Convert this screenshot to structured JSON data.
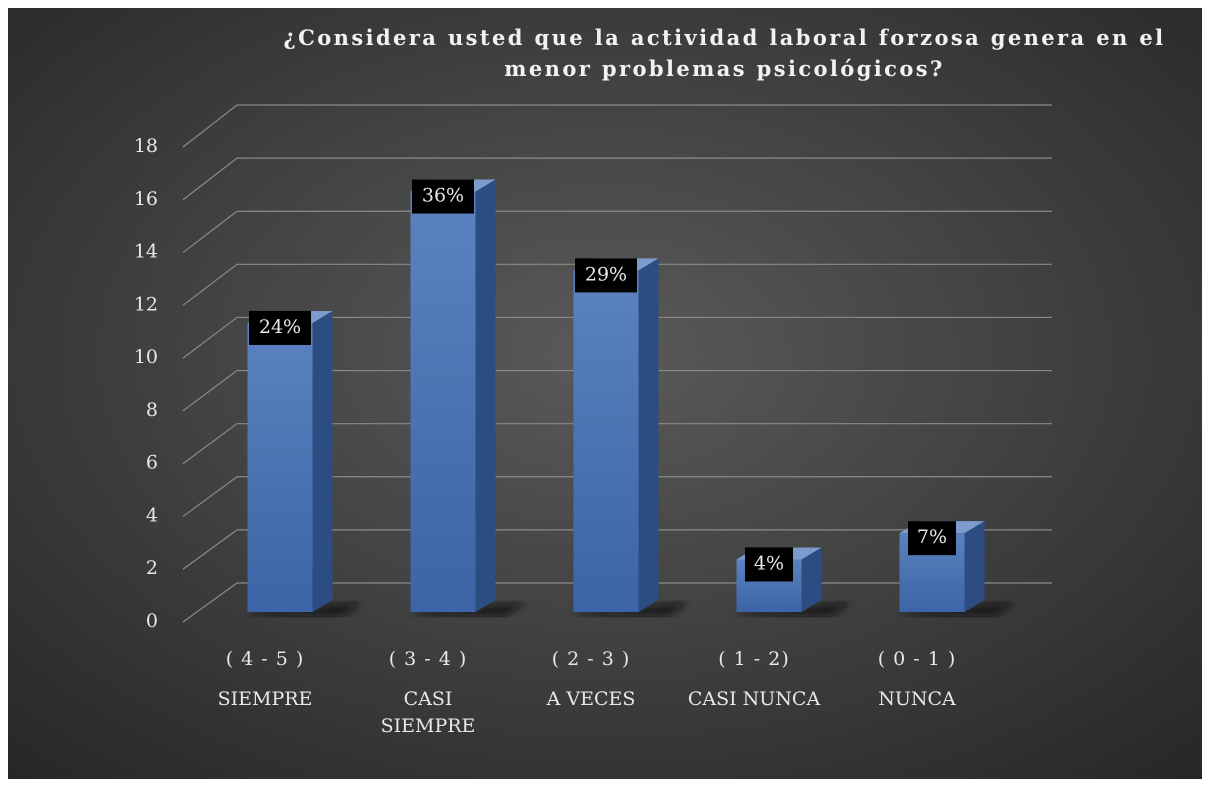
{
  "chart_data": {
    "type": "bar3d",
    "title": "¿Considera usted que la actividad laboral forzosa genera en el menor problemas psicológicos?",
    "categories": [
      [
        "SIEMPRE"
      ],
      [
        "CASI",
        "SIEMPRE"
      ],
      [
        "A VECES"
      ],
      [
        "CASI NUNCA"
      ],
      [
        "NUNCA"
      ]
    ],
    "category_ranges": [
      "( 4 - 5 )",
      "( 3 - 4 )",
      "( 2 - 3 )",
      "( 1 - 2)",
      "( 0 - 1 )"
    ],
    "values": [
      11,
      16,
      13,
      2,
      3
    ],
    "data_labels": [
      "24%",
      "36%",
      "29%",
      "4%",
      "7%"
    ],
    "color": "#4a72b0",
    "ylim": [
      0,
      18
    ],
    "yticks": [
      0,
      2,
      4,
      6,
      8,
      10,
      12,
      14,
      16,
      18
    ],
    "grid": true
  }
}
